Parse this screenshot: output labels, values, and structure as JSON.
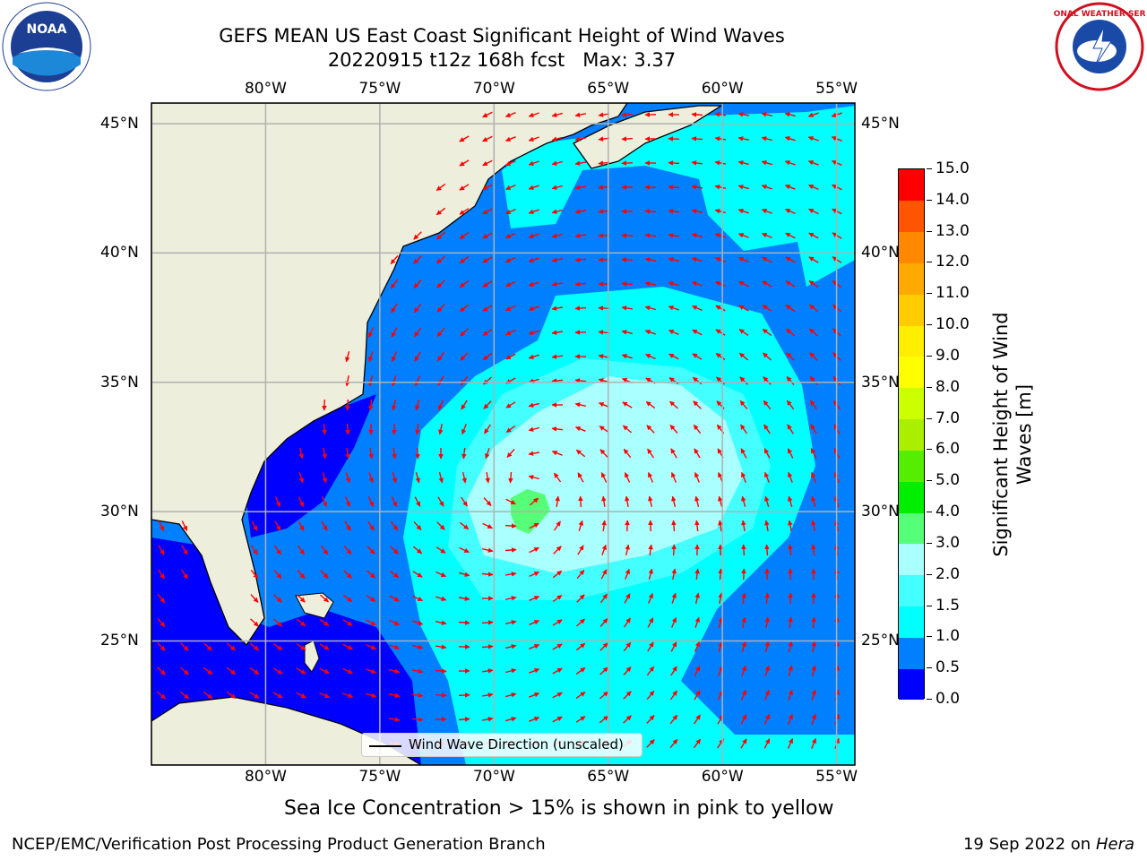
{
  "header": {
    "title_line1": "GEFS MEAN US East Coast Significant Height of Wind Waves",
    "title_line2": "20220915 t12z 168h fcst   Max: 3.37"
  },
  "logos": {
    "left": "noaa-logo",
    "left_text": "NOAA",
    "right": "national-weather-service-logo",
    "right_text": "NATIONAL WEATHER SERVICE"
  },
  "map": {
    "lon_ticks": [
      "80°W",
      "75°W",
      "70°W",
      "65°W",
      "60°W",
      "55°W"
    ],
    "lat_ticks": [
      "45°N",
      "40°N",
      "35°N",
      "30°N",
      "25°N"
    ],
    "lon_range": [
      -85,
      -54.2
    ],
    "lat_range": [
      20.2,
      45.8
    ],
    "colors": {
      "land": "#eeeedd",
      "grid": "#b0b0b0",
      "arrow": "#ff0000",
      "coast": "#000000"
    },
    "max_value": 3.37
  },
  "legend": {
    "label": "Wind Wave Direction (unscaled)"
  },
  "colorbar": {
    "label_line1": "Significant Height of Wind",
    "label_line2": "Waves [m]",
    "levels": [
      "0.0",
      "0.5",
      "1.0",
      "1.5",
      "2.0",
      "3.0",
      "4.0",
      "5.0",
      "6.0",
      "7.0",
      "8.0",
      "9.0",
      "10.0",
      "11.0",
      "12.0",
      "13.0",
      "14.0",
      "15.0"
    ],
    "colors": [
      "#0000ff",
      "#0080ff",
      "#00ffff",
      "#44ffff",
      "#aaffff",
      "#55ff77",
      "#00ee00",
      "#55ee00",
      "#aaee00",
      "#ccff00",
      "#ffff00",
      "#ffee00",
      "#ffcc00",
      "#ffaa00",
      "#ff8800",
      "#ff5500",
      "#ff0000"
    ]
  },
  "notes": {
    "sea_ice": "Sea Ice Concentration > 15% is shown in pink to yellow",
    "footer_left": "NCEP/EMC/Verification Post Processing Product Generation Branch",
    "footer_right_date": "19 Sep 2022 on",
    "footer_right_host": "Hera"
  }
}
